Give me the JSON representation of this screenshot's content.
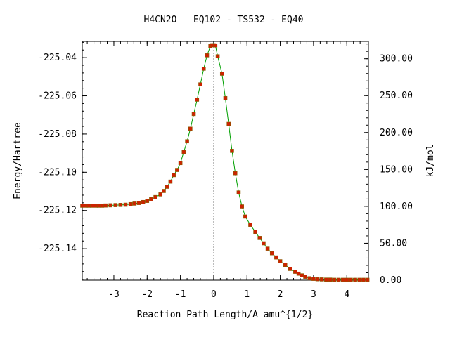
{
  "chart_data": {
    "type": "line",
    "title": "H4CN2O   EQ102 - TS532 - EQ40",
    "xlabel": "Reaction Path Length/A amu^{1/2}",
    "ylabel": "Energy/Hartree",
    "y2label": "kJ/mol",
    "xlim": [
      -3.95,
      4.65
    ],
    "ylim": [
      -225.1565,
      -225.0315
    ],
    "y2lim": [
      0,
      323.5
    ],
    "x_ticks": [
      -3,
      -2,
      -1,
      0,
      1,
      2,
      3,
      4
    ],
    "x_tick_labels": [
      "-3",
      "-2",
      "-1",
      "0",
      "1",
      "2",
      "3",
      "4"
    ],
    "y_ticks": [
      -225.04,
      -225.06,
      -225.08,
      -225.1,
      -225.12,
      -225.14
    ],
    "y_tick_labels": [
      "-225.04",
      "-225.06",
      "-225.08",
      "-225.10",
      "-225.12",
      "-225.14"
    ],
    "y2_ticks": [
      300,
      250,
      200,
      150,
      100,
      50,
      0
    ],
    "y2_tick_labels": [
      "300.00",
      "250.00",
      "200.00",
      "150.00",
      "100.00",
      "50.00",
      "0.00"
    ],
    "ts_marker_x": 0,
    "grid": false,
    "line_color": "#00a000",
    "marker_color": "#cc2200",
    "series": [
      {
        "values": [
          [
            -3.95,
            -225.1175
          ],
          [
            -3.85,
            -225.1175
          ],
          [
            -3.75,
            -225.1175
          ],
          [
            -3.65,
            -225.1175
          ],
          [
            -3.55,
            -225.1175
          ],
          [
            -3.45,
            -225.1175
          ],
          [
            -3.35,
            -225.1175
          ],
          [
            -3.25,
            -225.1174
          ],
          [
            -3.1,
            -225.1173
          ],
          [
            -2.95,
            -225.1172
          ],
          [
            -2.8,
            -225.1171
          ],
          [
            -2.65,
            -225.117
          ],
          [
            -2.5,
            -225.1167
          ],
          [
            -2.38,
            -225.1164
          ],
          [
            -2.25,
            -225.1161
          ],
          [
            -2.12,
            -225.1156
          ],
          [
            -2.0,
            -225.115
          ],
          [
            -1.88,
            -225.1141
          ],
          [
            -1.75,
            -225.113
          ],
          [
            -1.6,
            -225.1116
          ],
          [
            -1.5,
            -225.1098
          ],
          [
            -1.4,
            -225.1076
          ],
          [
            -1.3,
            -225.1049
          ],
          [
            -1.2,
            -225.1015
          ],
          [
            -1.1,
            -225.0988
          ],
          [
            -1.0,
            -225.0952
          ],
          [
            -0.9,
            -225.0894
          ],
          [
            -0.8,
            -225.0838
          ],
          [
            -0.7,
            -225.0772
          ],
          [
            -0.6,
            -225.0695
          ],
          [
            -0.5,
            -225.062
          ],
          [
            -0.4,
            -225.054
          ],
          [
            -0.3,
            -225.0458
          ],
          [
            -0.2,
            -225.0388
          ],
          [
            -0.1,
            -225.034
          ],
          [
            -0.05,
            -225.0335
          ],
          [
            0.0,
            -225.0335
          ],
          [
            0.05,
            -225.0336
          ],
          [
            0.12,
            -225.0393
          ],
          [
            0.25,
            -225.0484
          ],
          [
            0.35,
            -225.0612
          ],
          [
            0.45,
            -225.0747
          ],
          [
            0.55,
            -225.0888
          ],
          [
            0.65,
            -225.1005
          ],
          [
            0.75,
            -225.1106
          ],
          [
            0.85,
            -225.1179
          ],
          [
            0.95,
            -225.1232
          ],
          [
            1.1,
            -225.1275
          ],
          [
            1.25,
            -225.1312
          ],
          [
            1.38,
            -225.1344
          ],
          [
            1.5,
            -225.1372
          ],
          [
            1.62,
            -225.14
          ],
          [
            1.75,
            -225.1424
          ],
          [
            1.88,
            -225.1446
          ],
          [
            2.0,
            -225.1466
          ],
          [
            2.15,
            -225.1485
          ],
          [
            2.3,
            -225.1506
          ],
          [
            2.45,
            -225.1521
          ],
          [
            2.55,
            -225.1531
          ],
          [
            2.65,
            -225.154
          ],
          [
            2.75,
            -225.1547
          ],
          [
            2.88,
            -225.1555
          ],
          [
            3.0,
            -225.1558
          ],
          [
            3.12,
            -225.156
          ],
          [
            3.25,
            -225.1561
          ],
          [
            3.38,
            -225.1562
          ],
          [
            3.5,
            -225.1562
          ],
          [
            3.62,
            -225.1563
          ],
          [
            3.75,
            -225.1563
          ],
          [
            3.88,
            -225.1563
          ],
          [
            4.0,
            -225.1563
          ],
          [
            4.12,
            -225.1563
          ],
          [
            4.25,
            -225.1563
          ],
          [
            4.38,
            -225.1563
          ],
          [
            4.5,
            -225.1563
          ],
          [
            4.62,
            -225.1563
          ]
        ]
      }
    ]
  }
}
